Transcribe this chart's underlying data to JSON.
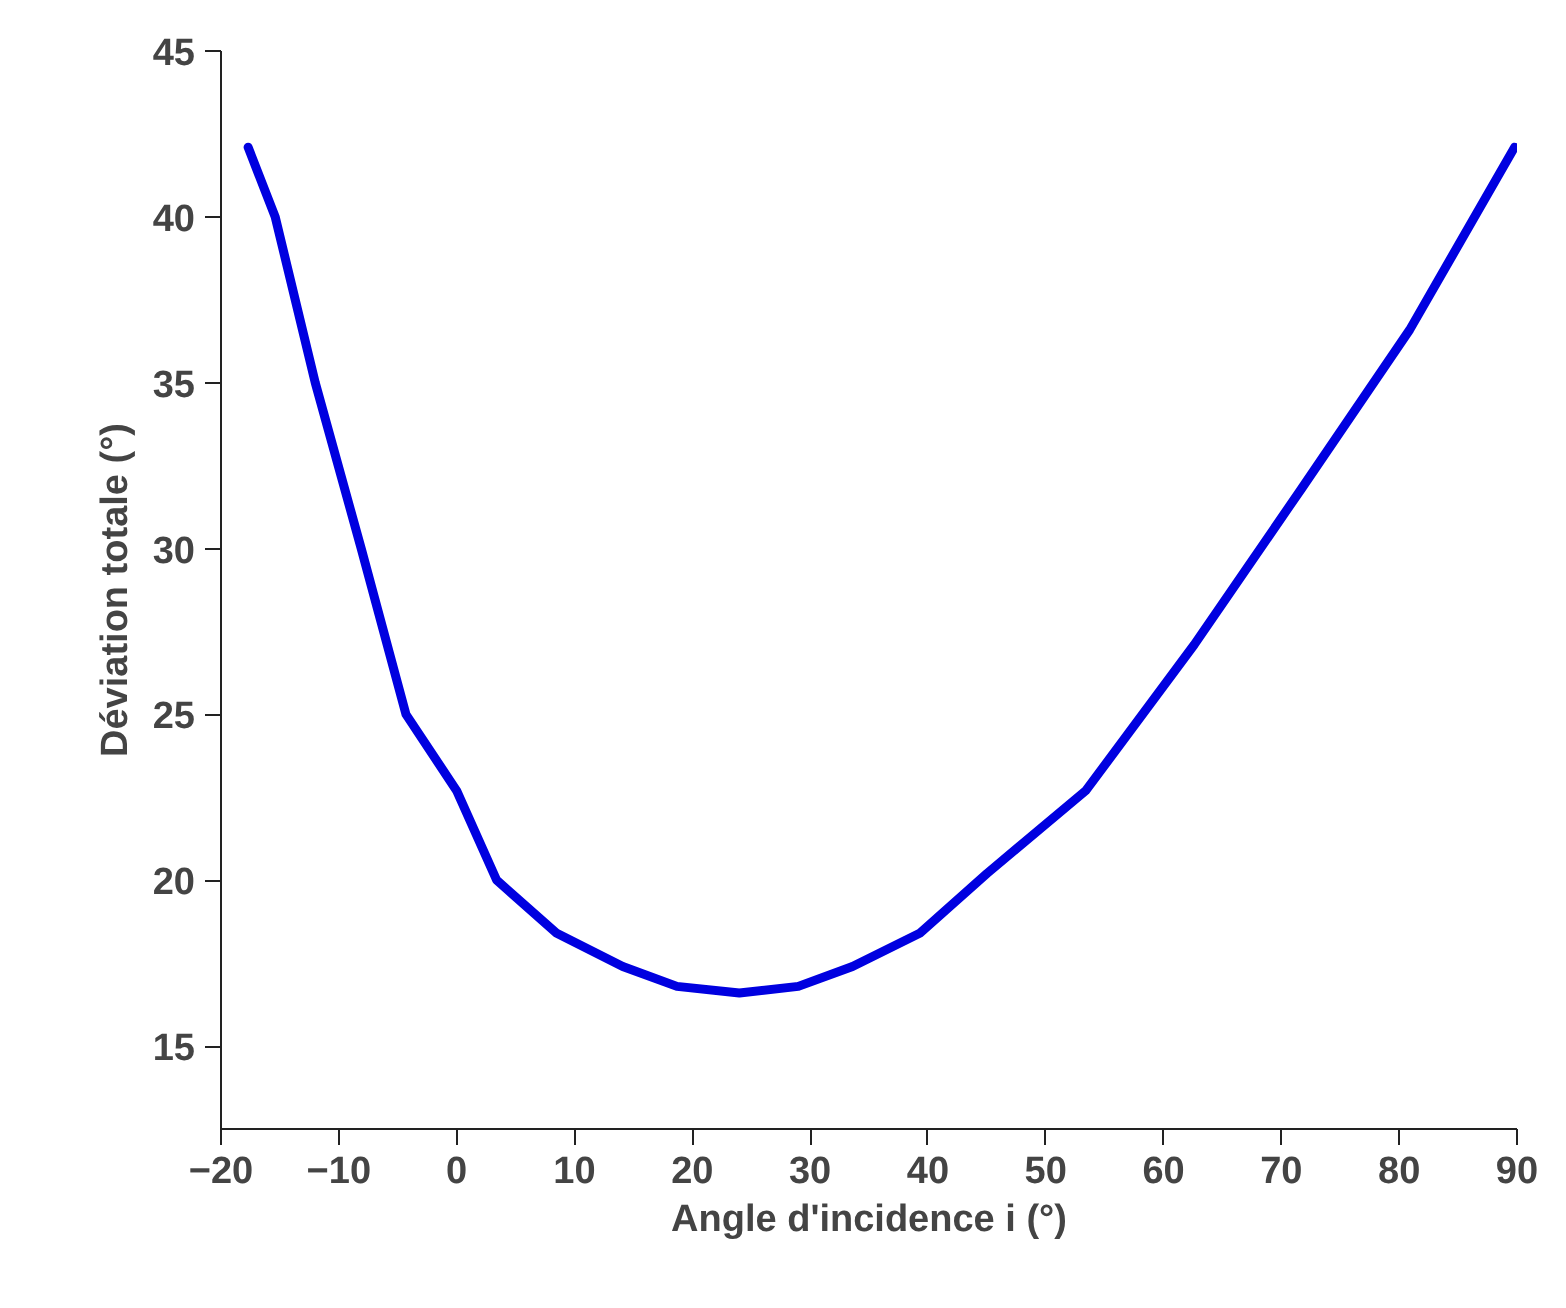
{
  "chart_data": {
    "type": "line",
    "xlabel": "Angle d'incidence i (°)",
    "ylabel": "Déviation totale (°)",
    "xlim": [
      -20,
      90
    ],
    "ylim": [
      12.5,
      45
    ],
    "xticks": [
      -20,
      -10,
      0,
      10,
      20,
      30,
      40,
      50,
      60,
      70,
      80,
      90
    ],
    "yticks": [
      15,
      20,
      25,
      30,
      35,
      40,
      45
    ],
    "grid": false,
    "line_style": "solid",
    "series": [
      {
        "color": "#0000e0",
        "x": [
          -17.7,
          -15.4,
          -12.0,
          -8.1,
          -4.3,
          0,
          3.4,
          8.5,
          14.1,
          18.7,
          24,
          29,
          33.6,
          39.3,
          45,
          53.4,
          62.6,
          71.7,
          80.9,
          89.8
        ],
        "values": [
          42.1,
          40,
          35,
          30,
          25,
          22.7,
          20,
          18.4,
          17.4,
          16.8,
          16.6,
          16.8,
          17.4,
          18.4,
          20.2,
          22.7,
          27.1,
          31.8,
          36.6,
          42.1
        ]
      }
    ]
  }
}
